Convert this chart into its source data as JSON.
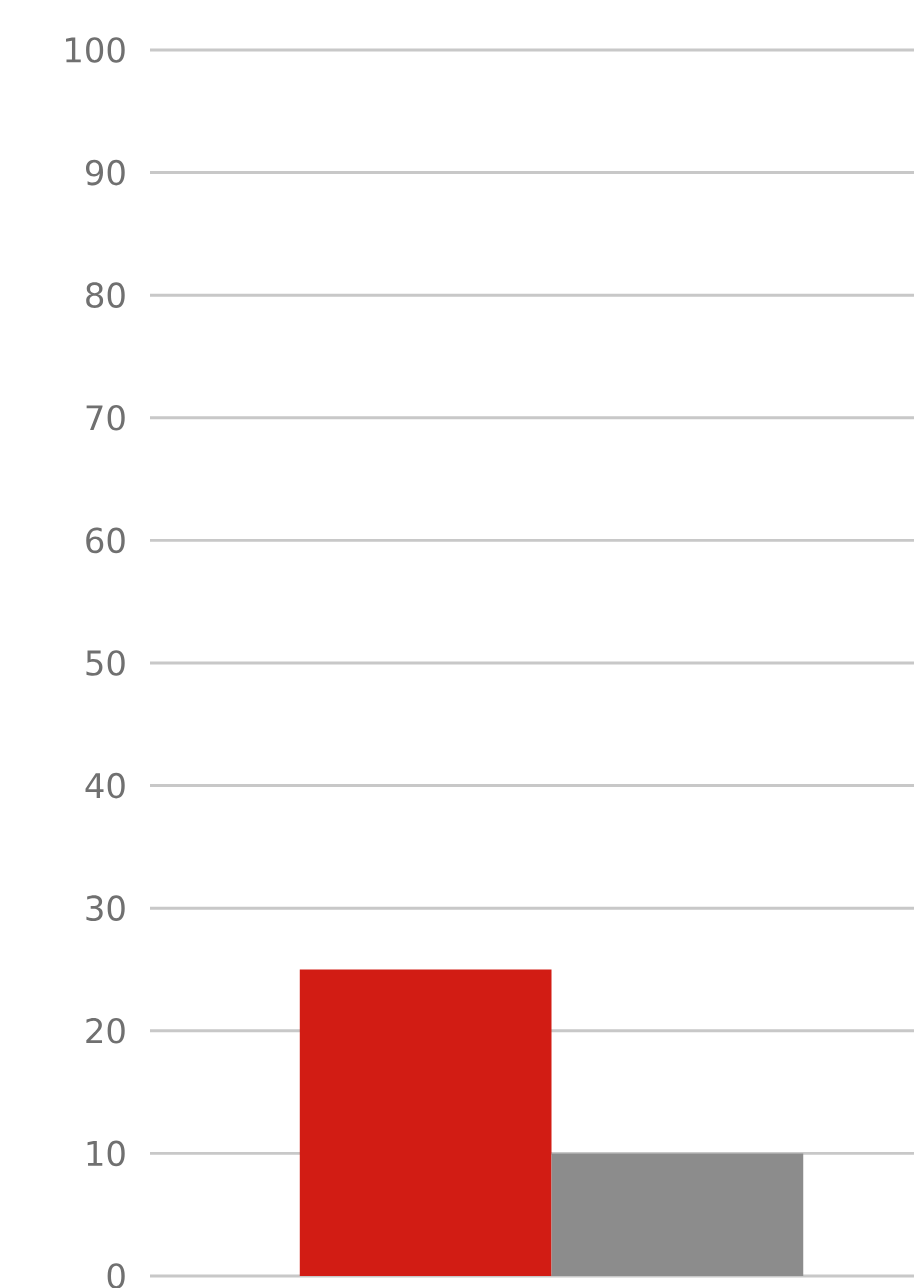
{
  "chart_data": {
    "type": "bar",
    "categories": [
      null,
      null
    ],
    "colors": [
      "#d21c14",
      "#8c8c8c"
    ],
    "values": [
      25,
      10
    ],
    "ylim": [
      0,
      100
    ],
    "yticks": [
      0,
      10,
      20,
      30,
      40,
      50,
      60,
      70,
      80,
      90,
      100
    ],
    "grid": "y"
  }
}
